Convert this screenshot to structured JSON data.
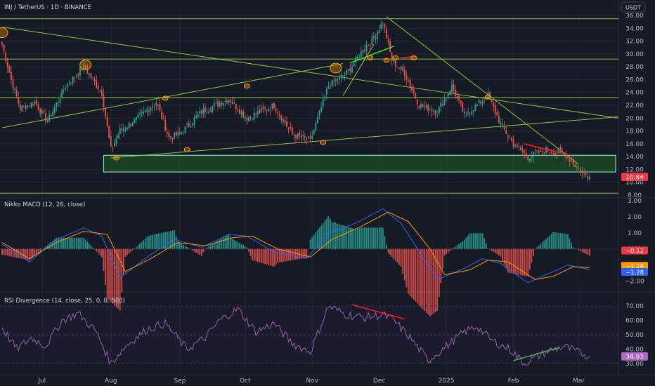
{
  "header": {
    "title": "INJ / TetherUS · 1D · BINANCE",
    "currency": "USDT"
  },
  "colors": {
    "background": "#161a25",
    "grid": "#232733",
    "candle_up": "#26a69a",
    "candle_down": "#ef5350",
    "trendline": "#8bc34a",
    "zone_fill": "#1b5e20",
    "zone_border": "#7fdbb6",
    "highlight_circle": "#ff9800",
    "red_line": "#ff1a1a",
    "macd_line": "#2962ff",
    "signal_line": "#ff9800",
    "hist_up": "#26a69a",
    "hist_down": "#ef5350",
    "rsi_line": "#9c5fa8",
    "rsi_bull": "#4caf50",
    "rsi_bear": "#ff1a1a",
    "label_red": "#f23645",
    "label_orange": "#ff9800",
    "label_blue": "#2962ff",
    "label_purple": "#b266c9"
  },
  "chart_data": [
    {
      "type": "candlestick",
      "panel": "price",
      "ylim": [
        8,
        36
      ],
      "y_ticks": [
        "36.00",
        "34.00",
        "32.00",
        "30.00",
        "28.00",
        "26.00",
        "24.00",
        "22.00",
        "20.00",
        "18.00",
        "16.00",
        "14.00",
        "12.00",
        "10.00",
        "8.00"
      ],
      "last_price_label": "10.84",
      "last_price": 10.84,
      "x_labels": [
        "Jul",
        "Aug",
        "Sep",
        "Oct",
        "Nov",
        "Dec",
        "2025",
        "Feb",
        "Mar"
      ],
      "close_anchors": [
        [
          0,
          31.5
        ],
        [
          5,
          26
        ],
        [
          10,
          21.5
        ],
        [
          18,
          22.5
        ],
        [
          25,
          19.5
        ],
        [
          35,
          25
        ],
        [
          45,
          28
        ],
        [
          55,
          24
        ],
        [
          60,
          15
        ],
        [
          65,
          18
        ],
        [
          75,
          20
        ],
        [
          85,
          22.5
        ],
        [
          92,
          17
        ],
        [
          98,
          17.5
        ],
        [
          110,
          21
        ],
        [
          125,
          23
        ],
        [
          135,
          20
        ],
        [
          150,
          22
        ],
        [
          160,
          17.5
        ],
        [
          170,
          16.5
        ],
        [
          180,
          25
        ],
        [
          190,
          27
        ],
        [
          200,
          31
        ],
        [
          205,
          32.5
        ],
        [
          210,
          35
        ],
        [
          215,
          29
        ],
        [
          222,
          27
        ],
        [
          230,
          22
        ],
        [
          240,
          21
        ],
        [
          248,
          25
        ],
        [
          255,
          20.5
        ],
        [
          262,
          22
        ],
        [
          268,
          23.5
        ],
        [
          275,
          19
        ],
        [
          282,
          16
        ],
        [
          290,
          14
        ],
        [
          300,
          15
        ],
        [
          310,
          14.5
        ],
        [
          320,
          11.5
        ],
        [
          324,
          10.84
        ]
      ],
      "support_zone": [
        11.6,
        14.2
      ],
      "horizontal_lines": [
        35.5,
        29.2,
        23.2,
        8.3
      ],
      "trendlines": [
        {
          "points": [
            [
              0,
              34.2
            ],
            [
              410,
              20.0
            ]
          ]
        },
        {
          "points": [
            [
              60,
              13.8
            ],
            [
              410,
              20.2
            ]
          ]
        },
        {
          "points": [
            [
              0,
              18.5
            ],
            [
              188,
              28.5
            ]
          ]
        },
        {
          "points": [
            [
              188,
              23.5
            ],
            [
              205,
              31.5
            ]
          ]
        },
        {
          "points": [
            [
              212,
              35.8
            ],
            [
              318,
              12.8
            ]
          ]
        }
      ],
      "green_marks": [
        {
          "points": [
            [
              192,
              28.6
            ],
            [
              216,
              31.2
            ]
          ]
        }
      ],
      "red_marks": [
        {
          "points": [
            [
              220,
              29.4
            ],
            [
              228,
              29.6
            ]
          ]
        },
        {
          "points": [
            [
              288,
              16.0
            ],
            [
              310,
              14.4
            ]
          ]
        }
      ],
      "highlight_circles": [
        {
          "x": 0,
          "y": 33.3
        },
        {
          "x": 46,
          "y": 28.3
        },
        {
          "x": 63,
          "y": 13.8
        },
        {
          "x": 90,
          "y": 23.1
        },
        {
          "x": 102,
          "y": 15.1
        },
        {
          "x": 135,
          "y": 25.0
        },
        {
          "x": 177,
          "y": 16.2
        },
        {
          "x": 184,
          "y": 27.8
        },
        {
          "x": 203,
          "y": 29.4
        },
        {
          "x": 212,
          "y": 29.0
        },
        {
          "x": 217,
          "y": 29.4
        },
        {
          "x": 227,
          "y": 29.4
        },
        {
          "x": 268,
          "y": 23.3
        }
      ]
    },
    {
      "type": "macd",
      "panel": "macd",
      "title": "Nikko MACD (12, 26, close)",
      "ylim": [
        -2.5,
        3.0
      ],
      "y_ticks": [
        "3.00",
        "2.00",
        "1.00",
        "0.00",
        "-1.00",
        "-2.00"
      ],
      "value_labels": [
        {
          "text": "−0.12",
          "value": -0.12,
          "color_key": "label_red"
        },
        {
          "text": "−1.16",
          "value": -1.16,
          "color_key": "label_orange"
        },
        {
          "text": "−1.28",
          "value": -1.28,
          "color_key": "label_blue"
        }
      ],
      "macd_anchors": [
        [
          0,
          0.3
        ],
        [
          15,
          -0.8
        ],
        [
          30,
          0.6
        ],
        [
          45,
          1.3
        ],
        [
          55,
          0.8
        ],
        [
          65,
          -1.8
        ],
        [
          80,
          -0.5
        ],
        [
          95,
          0.6
        ],
        [
          110,
          0.1
        ],
        [
          125,
          0.9
        ],
        [
          135,
          0.8
        ],
        [
          150,
          -0.2
        ],
        [
          168,
          -0.6
        ],
        [
          180,
          1.0
        ],
        [
          195,
          1.6
        ],
        [
          210,
          2.5
        ],
        [
          220,
          1.6
        ],
        [
          232,
          -0.5
        ],
        [
          240,
          -1.9
        ],
        [
          255,
          -1.2
        ],
        [
          265,
          -0.6
        ],
        [
          275,
          -0.9
        ],
        [
          290,
          -2.1
        ],
        [
          300,
          -1.6
        ],
        [
          312,
          -1.0
        ],
        [
          324,
          -1.28
        ]
      ],
      "signal_anchors": [
        [
          0,
          0.4
        ],
        [
          15,
          -0.6
        ],
        [
          30,
          0.4
        ],
        [
          45,
          1.1
        ],
        [
          58,
          0.9
        ],
        [
          68,
          -1.4
        ],
        [
          82,
          -0.6
        ],
        [
          97,
          0.4
        ],
        [
          112,
          0.2
        ],
        [
          127,
          0.7
        ],
        [
          138,
          0.8
        ],
        [
          152,
          0.0
        ],
        [
          170,
          -0.5
        ],
        [
          182,
          0.6
        ],
        [
          198,
          1.4
        ],
        [
          213,
          2.3
        ],
        [
          224,
          1.7
        ],
        [
          236,
          0.0
        ],
        [
          244,
          -1.6
        ],
        [
          258,
          -1.3
        ],
        [
          268,
          -0.7
        ],
        [
          279,
          -0.8
        ],
        [
          294,
          -1.9
        ],
        [
          304,
          -1.7
        ],
        [
          315,
          -1.1
        ],
        [
          324,
          -1.16
        ]
      ]
    },
    {
      "type": "rsi",
      "panel": "rsi",
      "title": "RSI Divergence (14, close, 25, 0, 0, 500)",
      "ylim": [
        25,
        75
      ],
      "y_ticks": [
        "70.00",
        "60.00",
        "50.00",
        "40.00",
        "30.00"
      ],
      "last_value_label": "34.93",
      "last_value": 34.93,
      "rsi_anchors": [
        [
          0,
          55
        ],
        [
          8,
          40
        ],
        [
          16,
          48
        ],
        [
          24,
          42
        ],
        [
          33,
          60
        ],
        [
          42,
          65
        ],
        [
          52,
          52
        ],
        [
          60,
          30
        ],
        [
          68,
          42
        ],
        [
          80,
          54
        ],
        [
          90,
          58
        ],
        [
          102,
          40
        ],
        [
          112,
          48
        ],
        [
          120,
          60
        ],
        [
          130,
          68
        ],
        [
          140,
          52
        ],
        [
          150,
          58
        ],
        [
          160,
          44
        ],
        [
          170,
          38
        ],
        [
          180,
          70
        ],
        [
          190,
          64
        ],
        [
          200,
          62
        ],
        [
          210,
          64
        ],
        [
          216,
          60
        ],
        [
          225,
          48
        ],
        [
          235,
          32
        ],
        [
          245,
          42
        ],
        [
          255,
          52
        ],
        [
          262,
          56
        ],
        [
          270,
          46
        ],
        [
          280,
          40
        ],
        [
          288,
          30
        ],
        [
          300,
          38
        ],
        [
          310,
          42
        ],
        [
          317,
          38
        ],
        [
          324,
          34.93
        ]
      ],
      "bear_divergence": {
        "points": [
          [
            193,
            71
          ],
          [
            222,
            61
          ]
        ]
      },
      "bull_divergence": {
        "points": [
          [
            282,
            32
          ],
          [
            307,
            41
          ]
        ]
      }
    }
  ]
}
